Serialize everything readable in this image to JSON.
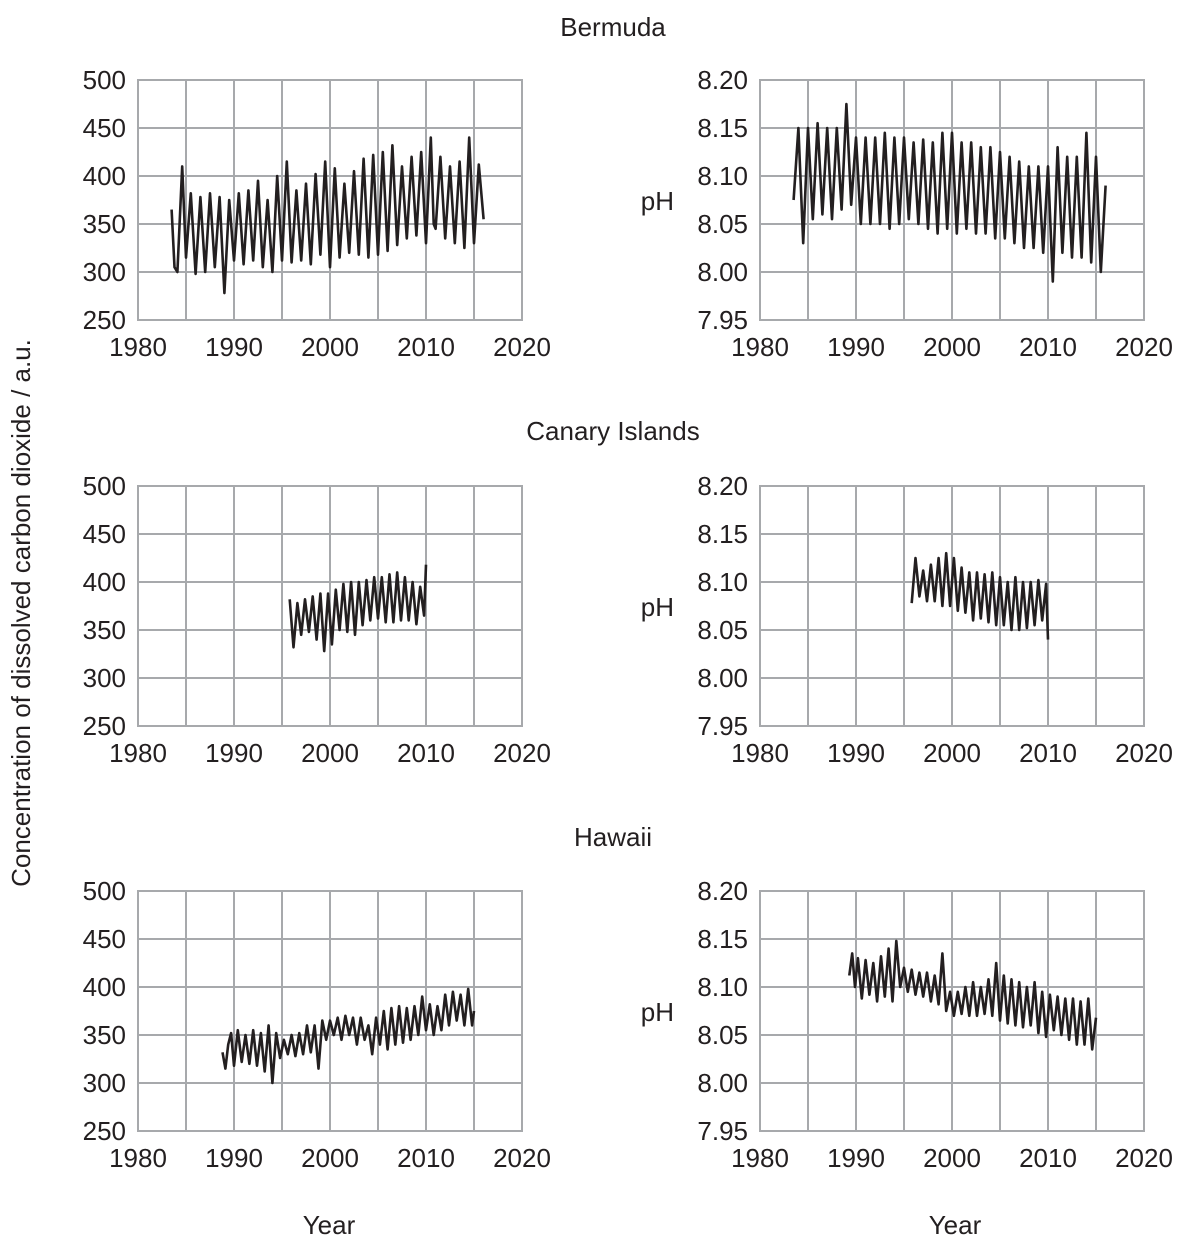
{
  "figure": {
    "shared_ylabel_left": "Concentration of dissolved carbon dioxide / a.u.",
    "xlabel_left": "Year",
    "xlabel_right": "Year"
  },
  "rows": [
    {
      "site": "Bermuda"
    },
    {
      "site": "Canary Islands"
    },
    {
      "site": "Hawaii"
    }
  ],
  "chart_data": [
    {
      "type": "line",
      "site": "Bermuda",
      "variable": "co2",
      "xlim": [
        1980,
        2020
      ],
      "ylim": [
        250,
        500
      ],
      "xticks": [
        "1980",
        "1990",
        "2000",
        "2010",
        "2020"
      ],
      "yticks": [
        "250",
        "300",
        "350",
        "400",
        "450",
        "500"
      ],
      "xlabel": "",
      "ylabel": "",
      "series": [
        {
          "x": [
            1983.5,
            1983.8,
            1984.1,
            1984.6,
            1985.0,
            1985.5,
            1986.0,
            1986.5,
            1987.0,
            1987.5,
            1988.0,
            1988.5,
            1989.0,
            1989.5,
            1990.0,
            1990.5,
            1991.0,
            1991.5,
            1992.0,
            1992.5,
            1993.0,
            1993.5,
            1994.0,
            1994.5,
            1995.0,
            1995.5,
            1996.0,
            1996.5,
            1997.0,
            1997.5,
            1998.0,
            1998.5,
            1999.0,
            1999.5,
            2000.0,
            2000.5,
            2001.0,
            2001.5,
            2002.0,
            2002.5,
            2003.0,
            2003.5,
            2004.0,
            2004.5,
            2005.0,
            2005.5,
            2006.0,
            2006.5,
            2007.0,
            2007.5,
            2008.0,
            2008.5,
            2009.0,
            2009.5,
            2010.0,
            2010.5,
            2010.8,
            2011.0,
            2011.5,
            2012.0,
            2012.5,
            2013.0,
            2013.5,
            2014.0,
            2014.5,
            2015.0,
            2015.5,
            2016.0
          ],
          "y": [
            365,
            305,
            300,
            410,
            315,
            382,
            298,
            378,
            300,
            382,
            305,
            378,
            278,
            375,
            312,
            382,
            308,
            385,
            312,
            395,
            305,
            375,
            300,
            400,
            312,
            415,
            310,
            385,
            312,
            392,
            308,
            402,
            318,
            415,
            305,
            408,
            315,
            392,
            320,
            405,
            318,
            418,
            315,
            422,
            318,
            425,
            322,
            432,
            328,
            410,
            335,
            420,
            338,
            425,
            330,
            440,
            350,
            345,
            420,
            335,
            410,
            330,
            415,
            325,
            440,
            330,
            412,
            355
          ]
        }
      ]
    },
    {
      "type": "line",
      "site": "Bermuda",
      "variable": "pH",
      "xlim": [
        1980,
        2020
      ],
      "ylim": [
        7.95,
        8.2
      ],
      "xticks": [
        "1980",
        "1990",
        "2000",
        "2010",
        "2020"
      ],
      "yticks": [
        "7.95",
        "8.00",
        "8.05",
        "8.10",
        "8.15",
        "8.20"
      ],
      "xlabel": "",
      "ylabel": "pH",
      "series": [
        {
          "x": [
            1983.5,
            1984.0,
            1984.5,
            1985.0,
            1985.5,
            1986.0,
            1986.5,
            1987.0,
            1987.5,
            1988.0,
            1988.5,
            1989.0,
            1989.5,
            1990.0,
            1990.5,
            1991.0,
            1991.5,
            1992.0,
            1992.5,
            1993.0,
            1993.5,
            1994.0,
            1994.5,
            1995.0,
            1995.5,
            1996.0,
            1996.5,
            1997.0,
            1997.5,
            1998.0,
            1998.5,
            1999.0,
            1999.5,
            2000.0,
            2000.5,
            2001.0,
            2001.5,
            2002.0,
            2002.5,
            2003.0,
            2003.5,
            2004.0,
            2004.5,
            2005.0,
            2005.5,
            2006.0,
            2006.5,
            2007.0,
            2007.5,
            2008.0,
            2008.5,
            2009.0,
            2009.5,
            2010.0,
            2010.5,
            2011.0,
            2011.5,
            2012.0,
            2012.5,
            2013.0,
            2013.5,
            2014.0,
            2014.5,
            2015.0,
            2015.5,
            2016.0
          ],
          "y": [
            8.075,
            8.15,
            8.03,
            8.15,
            8.055,
            8.155,
            8.06,
            8.15,
            8.055,
            8.15,
            8.065,
            8.175,
            8.07,
            8.14,
            8.05,
            8.14,
            8.05,
            8.14,
            8.05,
            8.145,
            8.045,
            8.14,
            8.05,
            8.14,
            8.055,
            8.135,
            8.05,
            8.138,
            8.045,
            8.135,
            8.04,
            8.145,
            8.045,
            8.145,
            8.04,
            8.135,
            8.045,
            8.135,
            8.04,
            8.13,
            8.04,
            8.13,
            8.035,
            8.125,
            8.035,
            8.12,
            8.03,
            8.115,
            8.025,
            8.11,
            8.025,
            8.11,
            8.02,
            8.11,
            7.99,
            8.13,
            8.02,
            8.12,
            8.015,
            8.12,
            8.015,
            8.145,
            8.01,
            8.12,
            8.0,
            8.09
          ]
        }
      ]
    },
    {
      "type": "line",
      "site": "Canary Islands",
      "variable": "co2",
      "xlim": [
        1980,
        2020
      ],
      "ylim": [
        250,
        500
      ],
      "xticks": [
        "1980",
        "1990",
        "2000",
        "2010",
        "2020"
      ],
      "yticks": [
        "250",
        "300",
        "350",
        "400",
        "450",
        "500"
      ],
      "xlabel": "",
      "ylabel": "",
      "series": [
        {
          "x": [
            1995.8,
            1996.2,
            1996.6,
            1997.0,
            1997.4,
            1997.8,
            1998.2,
            1998.6,
            1999.0,
            1999.4,
            1999.8,
            2000.2,
            2000.6,
            2001.0,
            2001.4,
            2001.8,
            2002.2,
            2002.6,
            2003.0,
            2003.4,
            2003.8,
            2004.2,
            2004.6,
            2005.0,
            2005.4,
            2005.8,
            2006.2,
            2006.6,
            2007.0,
            2007.4,
            2007.8,
            2008.2,
            2008.6,
            2009.0,
            2009.4,
            2009.8,
            2010.0
          ],
          "y": [
            382,
            332,
            378,
            345,
            382,
            348,
            385,
            340,
            388,
            328,
            388,
            335,
            392,
            350,
            398,
            348,
            400,
            345,
            400,
            355,
            402,
            360,
            405,
            362,
            405,
            358,
            408,
            358,
            410,
            360,
            405,
            360,
            400,
            356,
            395,
            365,
            418
          ]
        }
      ]
    },
    {
      "type": "line",
      "site": "Canary Islands",
      "variable": "pH",
      "xlim": [
        1980,
        2020
      ],
      "ylim": [
        7.95,
        8.2
      ],
      "xticks": [
        "1980",
        "1990",
        "2000",
        "2010",
        "2020"
      ],
      "yticks": [
        "7.95",
        "8.00",
        "8.05",
        "8.10",
        "8.15",
        "8.20"
      ],
      "xlabel": "",
      "ylabel": "pH",
      "series": [
        {
          "x": [
            1995.8,
            1996.2,
            1996.6,
            1997.0,
            1997.4,
            1997.8,
            1998.2,
            1998.6,
            1999.0,
            1999.4,
            1999.8,
            2000.2,
            2000.6,
            2001.0,
            2001.4,
            2001.8,
            2002.2,
            2002.6,
            2003.0,
            2003.4,
            2003.8,
            2004.2,
            2004.6,
            2005.0,
            2005.4,
            2005.8,
            2006.2,
            2006.6,
            2007.0,
            2007.4,
            2007.8,
            2008.2,
            2008.6,
            2009.0,
            2009.4,
            2009.8,
            2010.0
          ],
          "y": [
            8.078,
            8.125,
            8.085,
            8.112,
            8.08,
            8.118,
            8.08,
            8.125,
            8.075,
            8.13,
            8.075,
            8.125,
            8.07,
            8.115,
            8.068,
            8.11,
            8.06,
            8.11,
            8.062,
            8.108,
            8.058,
            8.11,
            8.055,
            8.105,
            8.055,
            8.1,
            8.05,
            8.105,
            8.05,
            8.1,
            8.052,
            8.1,
            8.055,
            8.102,
            8.06,
            8.098,
            8.04
          ]
        }
      ]
    },
    {
      "type": "line",
      "site": "Hawaii",
      "variable": "co2",
      "xlim": [
        1980,
        2020
      ],
      "ylim": [
        250,
        500
      ],
      "xticks": [
        "1980",
        "1990",
        "2000",
        "2010",
        "2020"
      ],
      "yticks": [
        "250",
        "300",
        "350",
        "400",
        "450",
        "500"
      ],
      "xlabel": "",
      "ylabel": "",
      "series": [
        {
          "x": [
            1988.8,
            1989.1,
            1989.4,
            1989.7,
            1990.0,
            1990.4,
            1990.8,
            1991.2,
            1991.6,
            1992.0,
            1992.4,
            1992.8,
            1993.2,
            1993.6,
            1994.0,
            1994.4,
            1994.8,
            1995.2,
            1995.6,
            1996.0,
            1996.4,
            1996.8,
            1997.2,
            1997.6,
            1998.0,
            1998.4,
            1998.8,
            1999.2,
            1999.6,
            2000.0,
            2000.4,
            2000.8,
            2001.2,
            2001.6,
            2002.0,
            2002.4,
            2002.8,
            2003.2,
            2003.6,
            2004.0,
            2004.4,
            2004.8,
            2005.2,
            2005.6,
            2006.0,
            2006.4,
            2006.8,
            2007.2,
            2007.6,
            2008.0,
            2008.4,
            2008.8,
            2009.2,
            2009.6,
            2010.0,
            2010.4,
            2010.8,
            2011.2,
            2011.6,
            2012.0,
            2012.4,
            2012.8,
            2013.2,
            2013.6,
            2014.0,
            2014.4,
            2014.8,
            2015.0
          ],
          "y": [
            332,
            315,
            340,
            352,
            318,
            355,
            322,
            350,
            320,
            355,
            318,
            352,
            312,
            360,
            300,
            352,
            326,
            345,
            330,
            350,
            328,
            352,
            330,
            360,
            332,
            360,
            315,
            365,
            345,
            365,
            350,
            368,
            345,
            370,
            350,
            368,
            340,
            368,
            345,
            360,
            330,
            368,
            340,
            375,
            335,
            378,
            340,
            380,
            342,
            378,
            345,
            380,
            350,
            390,
            355,
            382,
            350,
            380,
            355,
            392,
            360,
            395,
            365,
            392,
            360,
            398,
            360,
            375
          ]
        }
      ]
    },
    {
      "type": "line",
      "site": "Hawaii",
      "variable": "pH",
      "xlim": [
        1980,
        2020
      ],
      "ylim": [
        7.95,
        8.2
      ],
      "xticks": [
        "1980",
        "1990",
        "2000",
        "2010",
        "2020"
      ],
      "yticks": [
        "7.95",
        "8.00",
        "8.05",
        "8.10",
        "8.15",
        "8.20"
      ],
      "xlabel": "",
      "ylabel": "pH",
      "series": [
        {
          "x": [
            1989.3,
            1989.6,
            1989.9,
            1990.2,
            1990.6,
            1991.0,
            1991.4,
            1991.8,
            1992.2,
            1992.6,
            1993.0,
            1993.4,
            1993.8,
            1994.2,
            1994.6,
            1995.0,
            1995.4,
            1995.8,
            1996.2,
            1996.6,
            1997.0,
            1997.4,
            1997.8,
            1998.2,
            1998.6,
            1999.0,
            1999.4,
            1999.8,
            2000.2,
            2000.6,
            2001.0,
            2001.4,
            2001.8,
            2002.2,
            2002.6,
            2003.0,
            2003.4,
            2003.8,
            2004.2,
            2004.6,
            2005.0,
            2005.4,
            2005.8,
            2006.2,
            2006.6,
            2007.0,
            2007.4,
            2007.8,
            2008.2,
            2008.6,
            2009.0,
            2009.4,
            2009.8,
            2010.2,
            2010.6,
            2011.0,
            2011.4,
            2011.8,
            2012.2,
            2012.6,
            2013.0,
            2013.4,
            2013.8,
            2014.2,
            2014.6,
            2015.0
          ],
          "y": [
            8.112,
            8.135,
            8.1,
            8.13,
            8.088,
            8.128,
            8.092,
            8.125,
            8.085,
            8.132,
            8.09,
            8.14,
            8.085,
            8.148,
            8.1,
            8.12,
            8.095,
            8.118,
            8.092,
            8.115,
            8.09,
            8.115,
            8.085,
            8.112,
            8.082,
            8.135,
            8.075,
            8.095,
            8.07,
            8.095,
            8.072,
            8.1,
            8.07,
            8.105,
            8.07,
            8.1,
            8.072,
            8.108,
            8.07,
            8.125,
            8.065,
            8.112,
            8.062,
            8.108,
            8.06,
            8.105,
            8.058,
            8.1,
            8.06,
            8.105,
            8.052,
            8.095,
            8.048,
            8.092,
            8.055,
            8.09,
            8.05,
            8.088,
            8.045,
            8.088,
            8.04,
            8.085,
            8.04,
            8.088,
            8.035,
            8.068
          ]
        }
      ]
    }
  ]
}
